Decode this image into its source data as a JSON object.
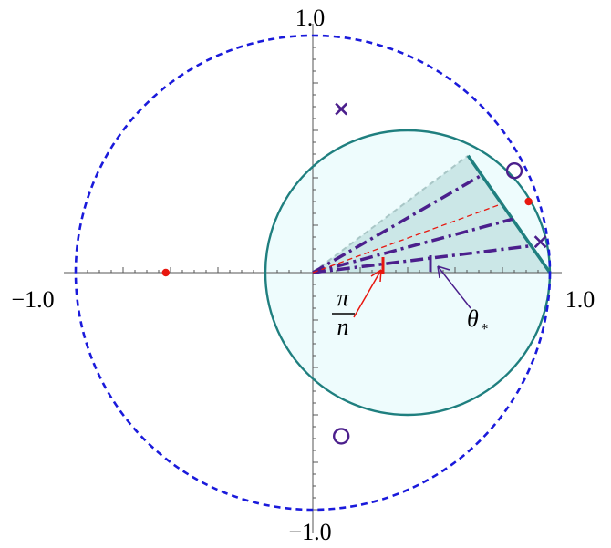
{
  "axes": {
    "x_label_min": "−1.0",
    "x_label_max": "1.0",
    "y_label_min": "−1.0",
    "y_label_max": "1.0",
    "xlim": [
      -1.05,
      1.05
    ],
    "ylim": [
      -1.05,
      1.05
    ]
  },
  "circles": {
    "outer_dashed": {
      "cx": 0,
      "cy": 0,
      "r": 1.0,
      "color": "#1a1adb"
    },
    "inner_solid": {
      "cx": 0.4,
      "cy": 0,
      "r": 0.6,
      "color": "#1f7f7f",
      "fill": "#eefcfd"
    }
  },
  "sector": {
    "angle_deg": 37,
    "fill": "#b9dcdc",
    "alpha": 0.65
  },
  "rays": {
    "dashdot_angles_deg": [
      30,
      7,
      15
    ],
    "dashed_angle_deg": 20,
    "dashdot_color": "#4b1f8c",
    "dashed_color": "#e8170f"
  },
  "markers": {
    "crosses": [
      [
        0.12,
        0.69
      ],
      [
        0.96,
        0.13
      ]
    ],
    "open_circles": [
      [
        0.85,
        0.43
      ],
      [
        0.12,
        -0.69
      ]
    ],
    "red_dots": [
      [
        -0.62,
        0
      ],
      [
        0.91,
        0.3
      ]
    ],
    "cross_color": "#4b1f8c",
    "circle_color": "#4b1f8c",
    "dot_color": "#e8170f"
  },
  "annotations": {
    "pi_label": "π",
    "n_label": "n",
    "theta_label": "θ",
    "theta_sub": "*",
    "pi_n_color": "#e8170f",
    "theta_color": "#4b1f8c"
  }
}
